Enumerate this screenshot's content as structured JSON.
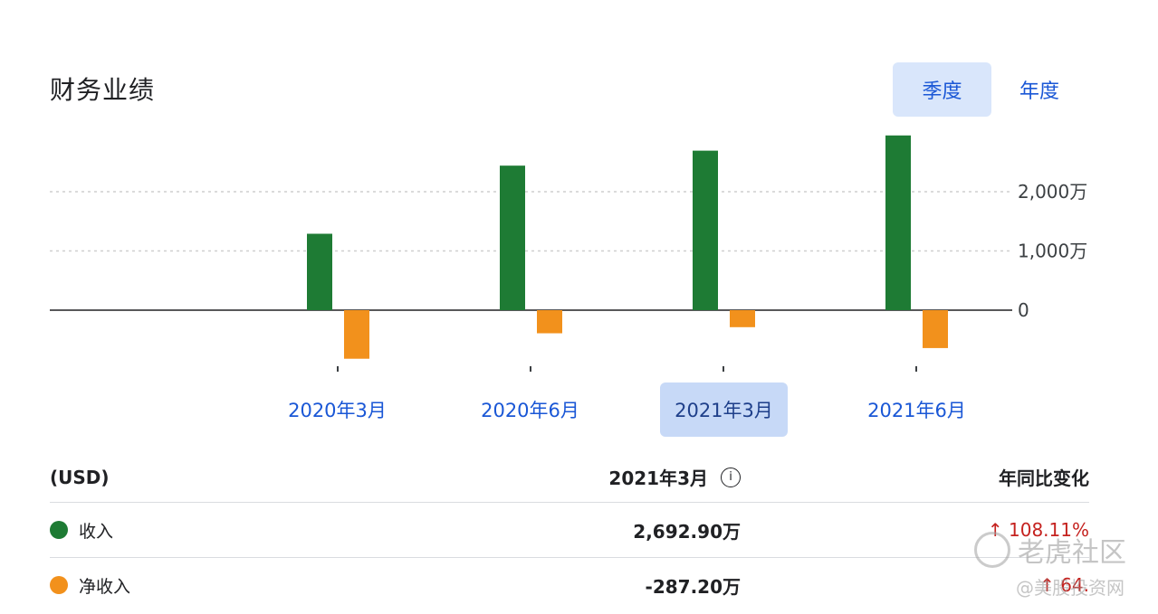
{
  "title": "财务业绩",
  "toggles": {
    "quarterly": "季度",
    "annual": "年度",
    "active": "quarterly"
  },
  "chart_data": {
    "type": "bar",
    "categories": [
      "2020年3月",
      "2020年6月",
      "2021年3月",
      "2021年6月"
    ],
    "selected_category": "2021年3月",
    "series": [
      {
        "name": "收入",
        "color": "#1e7b34",
        "values": [
          1290,
          2440,
          2692.9,
          2950
        ]
      },
      {
        "name": "净收入",
        "color": "#f2911c",
        "values": [
          -820,
          -390,
          -287.2,
          -640
        ]
      }
    ],
    "yticks": [
      {
        "value": 2000,
        "label": "2,000万"
      },
      {
        "value": 1000,
        "label": "1,000万"
      },
      {
        "value": 0,
        "label": "0"
      }
    ],
    "unit": "万",
    "ylim": [
      -1000,
      3000
    ],
    "grid": true
  },
  "table": {
    "header": {
      "label": "(USD)",
      "period": "2021年3月",
      "change": "年同比变化"
    },
    "rows": [
      {
        "label": "收入",
        "color": "#1e7b34",
        "value": "2,692.90万",
        "change": "↑ 108.11%"
      },
      {
        "label": "净收入",
        "color": "#f2911c",
        "value": "-287.20万",
        "change": "↑ 64."
      }
    ]
  },
  "watermark": {
    "line1": "老虎社区",
    "line2": "@美股投资网"
  }
}
